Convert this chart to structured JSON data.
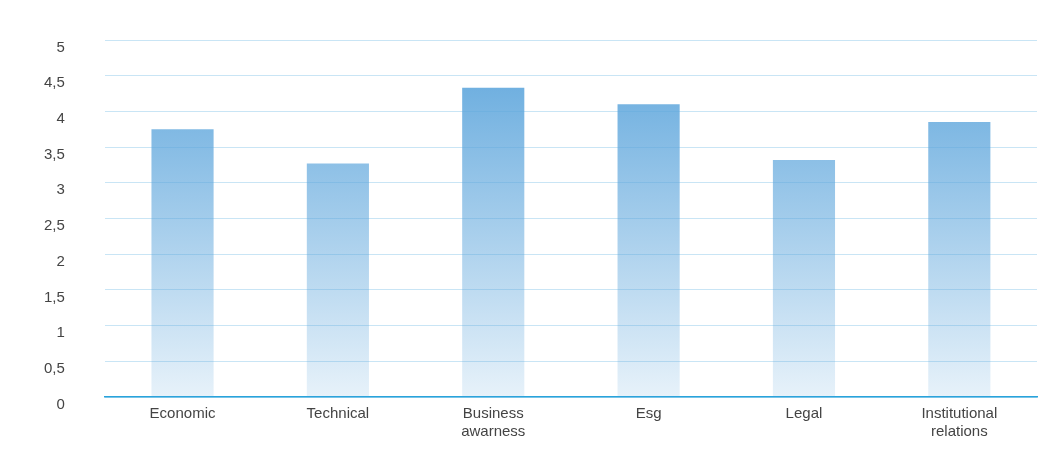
{
  "chart_data": {
    "type": "bar",
    "categories": [
      "Economic",
      "Technical",
      "Business awarness",
      "Esg",
      "Legal",
      "Institutional relations"
    ],
    "values": [
      3.75,
      3.27,
      4.33,
      4.1,
      3.32,
      3.85
    ],
    "color": "#5ea6dc",
    "ylim": [
      0,
      5
    ],
    "yticks": [
      0,
      {
        "value": 0.5,
        "label": "0,5"
      },
      1,
      {
        "value": 1.5,
        "label": "1,5"
      },
      2,
      {
        "value": 2.5,
        "label": "2,5"
      },
      3,
      {
        "value": 3.5,
        "label": "3,5"
      },
      4,
      {
        "value": 4.5,
        "label": "4,5"
      },
      5
    ],
    "grid": "y",
    "legend": false
  }
}
